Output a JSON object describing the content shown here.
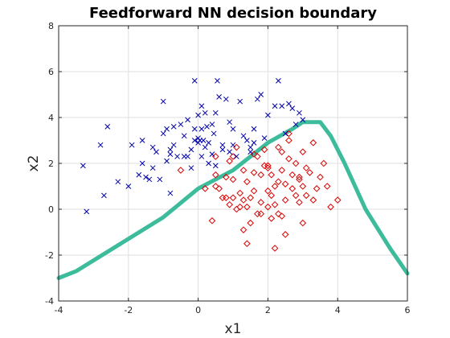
{
  "chart_data": {
    "type": "scatter",
    "title": "Feedforward NN decision boundary",
    "xlabel": "x1",
    "ylabel": "x2",
    "xlim": [
      -4,
      6
    ],
    "ylim": [
      -4,
      8
    ],
    "xticks": [
      -4,
      -2,
      0,
      2,
      4,
      6
    ],
    "yticks": [
      -4,
      -2,
      0,
      2,
      4,
      6,
      8
    ],
    "xtick_labels": [
      "-4",
      "-2",
      "0",
      "2",
      "4",
      "6"
    ],
    "ytick_labels": [
      "-4",
      "-2",
      "0",
      "2",
      "4",
      "6",
      "8"
    ],
    "grid": true,
    "colors": {
      "class_a": "#0000aa",
      "class_b": "#dd0000",
      "boundary": "#3dbc9c",
      "grid": "#dfdfdf",
      "axes": "#262626"
    },
    "series": [
      {
        "marker": "x",
        "x": [
          -3.3,
          -3.2,
          -2.8,
          -2.7,
          -2.6,
          -2.3,
          -2.0,
          -1.9,
          -1.7,
          -1.6,
          -1.5,
          -1.4,
          -1.3,
          -1.2,
          -1.1,
          -1.0,
          -1.0,
          -0.9,
          -0.9,
          -0.8,
          -0.8,
          -0.7,
          -0.7,
          -0.6,
          -0.5,
          -0.4,
          -0.4,
          -0.3,
          -0.3,
          -0.2,
          -0.2,
          -0.1,
          -0.1,
          0.0,
          0.0,
          0.0,
          0.05,
          0.1,
          0.1,
          0.1,
          0.15,
          0.2,
          0.2,
          0.25,
          0.3,
          0.3,
          0.4,
          0.4,
          0.45,
          0.5,
          0.5,
          0.55,
          0.6,
          0.7,
          0.8,
          0.9,
          0.9,
          1.0,
          1.0,
          1.1,
          1.2,
          1.3,
          1.4,
          1.5,
          1.5,
          1.6,
          1.7,
          1.8,
          2.0,
          2.2,
          2.3,
          2.4,
          2.5,
          2.6,
          2.7,
          2.8,
          2.9,
          3.0,
          -0.8,
          -1.3,
          -1.6,
          1.6,
          0.7,
          -0.1,
          1.9
        ],
        "y": [
          1.9,
          -0.1,
          2.8,
          0.6,
          3.6,
          1.2,
          1.0,
          2.8,
          1.5,
          3.0,
          1.4,
          1.3,
          2.7,
          2.5,
          1.3,
          3.3,
          4.7,
          2.1,
          3.5,
          0.7,
          2.6,
          2.8,
          3.6,
          2.3,
          3.7,
          2.3,
          3.2,
          2.3,
          3.9,
          2.6,
          1.8,
          3.5,
          5.6,
          2.9,
          3.1,
          4.1,
          3.0,
          3.5,
          4.5,
          2.3,
          3.0,
          4.2,
          2.7,
          3.6,
          2.9,
          2.0,
          3.7,
          2.4,
          3.3,
          4.2,
          1.9,
          5.6,
          4.9,
          2.8,
          4.8,
          3.8,
          2.5,
          3.5,
          2.8,
          2.3,
          4.7,
          3.2,
          3.0,
          2.5,
          2.7,
          3.5,
          4.8,
          5.0,
          4.1,
          4.5,
          5.6,
          4.5,
          3.3,
          4.6,
          4.4,
          3.7,
          4.2,
          3.9,
          2.4,
          1.8,
          2.0,
          2.9,
          2.6,
          3.0,
          3.1
        ]
      },
      {
        "marker": "diamond",
        "x": [
          -0.5,
          0.2,
          0.4,
          0.5,
          0.5,
          0.5,
          0.6,
          0.7,
          0.8,
          0.8,
          0.9,
          0.9,
          1.0,
          1.0,
          1.0,
          1.1,
          1.1,
          1.2,
          1.3,
          1.3,
          1.3,
          1.4,
          1.4,
          1.5,
          1.5,
          1.6,
          1.6,
          1.7,
          1.7,
          1.8,
          1.8,
          1.9,
          1.9,
          2.0,
          2.0,
          2.0,
          2.1,
          2.1,
          2.1,
          2.2,
          2.2,
          2.3,
          2.3,
          2.3,
          2.4,
          2.4,
          2.5,
          2.5,
          2.5,
          2.6,
          2.6,
          2.7,
          2.7,
          2.8,
          2.8,
          2.9,
          2.9,
          3.0,
          3.0,
          3.1,
          3.1,
          3.2,
          3.3,
          3.3,
          3.4,
          3.5,
          3.6,
          3.7,
          3.8,
          4.0,
          1.4,
          2.2,
          1.8,
          2.0,
          2.6,
          2.4,
          3.0,
          1.6,
          1.2,
          2.9
        ],
        "y": [
          1.7,
          0.9,
          -0.5,
          1.0,
          1.5,
          2.3,
          0.9,
          0.5,
          1.4,
          0.5,
          0.2,
          2.1,
          0.5,
          1.3,
          2.3,
          0.0,
          2.7,
          0.7,
          -0.9,
          0.4,
          1.7,
          0.1,
          1.2,
          -0.6,
          0.5,
          0.8,
          2.4,
          -0.2,
          2.3,
          0.3,
          1.5,
          1.9,
          2.6,
          0.1,
          0.8,
          1.8,
          -0.4,
          0.6,
          1.5,
          0.2,
          1.0,
          -0.2,
          1.2,
          2.7,
          -0.3,
          1.7,
          -1.1,
          0.4,
          1.1,
          2.2,
          3.3,
          1.5,
          0.9,
          0.6,
          2.0,
          0.3,
          1.4,
          1.0,
          2.5,
          0.6,
          1.8,
          1.6,
          0.4,
          2.9,
          0.9,
          1.4,
          2.0,
          1.0,
          0.1,
          0.4,
          -1.5,
          -1.7,
          -0.2,
          1.9,
          3.0,
          2.5,
          -0.6,
          1.6,
          0.1,
          1.3
        ]
      },
      {
        "marker": "line",
        "x": [
          -4.0,
          -3.5,
          -1.0,
          0.0,
          1.0,
          2.0,
          2.7,
          3.0,
          3.5,
          3.8,
          4.2,
          4.8,
          5.5,
          6.0
        ],
        "y": [
          -3.0,
          -2.7,
          -0.35,
          0.9,
          1.7,
          2.9,
          3.5,
          3.8,
          3.8,
          3.2,
          2.0,
          0.0,
          -1.7,
          -2.8
        ]
      }
    ]
  }
}
